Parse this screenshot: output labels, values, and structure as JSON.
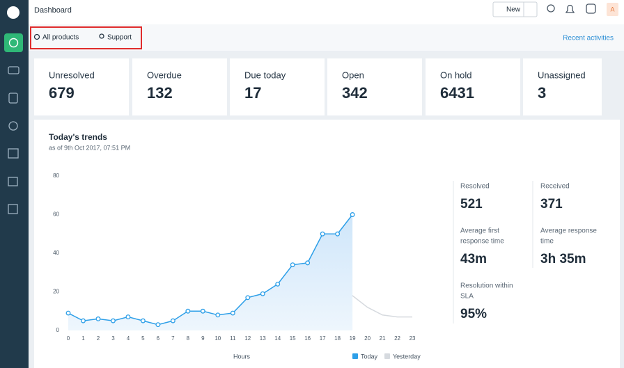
{
  "header": {
    "title": "Dashboard",
    "new_button": "New",
    "avatar": "A"
  },
  "filters": {
    "products": "All products",
    "group": "Support",
    "recent": "Recent activities"
  },
  "cards": [
    {
      "label": "Unresolved",
      "value": 679
    },
    {
      "label": "Overdue",
      "value": 132
    },
    {
      "label": "Due today",
      "value": 17
    },
    {
      "label": "Open",
      "value": 342
    },
    {
      "label": "On hold",
      "value": 6431
    },
    {
      "label": "Unassigned",
      "value": 3
    }
  ],
  "trends": {
    "title": "Today's trends",
    "subtitle": "as of 9th Oct 2017, 07:51 PM",
    "chart": {
      "type": "line",
      "xlabel": "Hours",
      "categories": [
        "0",
        "1",
        "2",
        "3",
        "4",
        "5",
        "6",
        "7",
        "8",
        "9",
        "10",
        "11",
        "12",
        "13",
        "14",
        "15",
        "16",
        "17",
        "18",
        "19",
        "20",
        "21",
        "22",
        "23"
      ],
      "ylim": [
        0,
        80
      ],
      "yticks": [
        0,
        20,
        40,
        60,
        80
      ],
      "series": [
        {
          "name": "Today",
          "color": "#2d9fe8",
          "markers": true,
          "area": true,
          "values": [
            9,
            5,
            6,
            5,
            7,
            5,
            3,
            5,
            10,
            10,
            8,
            9,
            17,
            19,
            24,
            34,
            35,
            50,
            50,
            60,
            null,
            null,
            null,
            null
          ]
        },
        {
          "name": "Yesterday",
          "color": "#d6dadf",
          "markers": false,
          "area": false,
          "values": [
            1,
            1,
            1,
            1,
            1,
            1,
            1,
            1,
            1,
            2,
            3,
            6,
            1,
            5,
            4,
            4,
            1,
            3,
            10,
            18,
            12,
            8,
            7,
            7
          ]
        }
      ]
    }
  },
  "stats": [
    {
      "label": [
        "Resolved"
      ],
      "value": "521"
    },
    {
      "label": [
        "Received"
      ],
      "value": "371"
    },
    {
      "label": [
        "Average first",
        "response time"
      ],
      "value": "43m"
    },
    {
      "label": [
        "Average response",
        "time"
      ],
      "value": "3h 35m"
    },
    {
      "label": [
        "Resolution within",
        "SLA"
      ],
      "value": "95%"
    }
  ]
}
